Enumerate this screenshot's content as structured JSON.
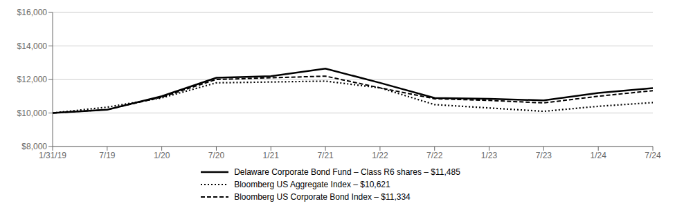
{
  "chart_data": {
    "type": "line",
    "categories": [
      "1/31/19",
      "7/19",
      "1/20",
      "7/20",
      "1/21",
      "7/21",
      "1/22",
      "7/22",
      "1/23",
      "7/23",
      "1/24",
      "7/24"
    ],
    "series": [
      {
        "name": "Delaware Corporate Bond Fund – Class R6 shares – $11,485",
        "color": "#000000",
        "line_style": "solid",
        "values": [
          10000,
          10200,
          11000,
          12100,
          12200,
          12650,
          11800,
          10900,
          10850,
          10750,
          11200,
          11485
        ]
      },
      {
        "name": "Bloomberg US Aggregate Index – $10,621",
        "color": "#000000",
        "line_style": "dotted",
        "values": [
          10000,
          10350,
          10900,
          11800,
          11850,
          11900,
          11500,
          10500,
          10300,
          10100,
          10400,
          10621
        ]
      },
      {
        "name": "Bloomberg US Corporate Bond Index – $11,334",
        "color": "#000000",
        "line_style": "dashed",
        "values": [
          10000,
          10200,
          10950,
          12000,
          12100,
          12200,
          11500,
          10850,
          10750,
          10600,
          11000,
          11334
        ]
      }
    ],
    "ylim": [
      8000,
      16000
    ],
    "yticks": [
      {
        "value": 8000,
        "label": "$8,000"
      },
      {
        "value": 10000,
        "label": "$10,000"
      },
      {
        "value": 12000,
        "label": "$12,000"
      },
      {
        "value": 14000,
        "label": "$14,000"
      },
      {
        "value": 16000,
        "label": "$16,000"
      }
    ],
    "grid": true
  }
}
